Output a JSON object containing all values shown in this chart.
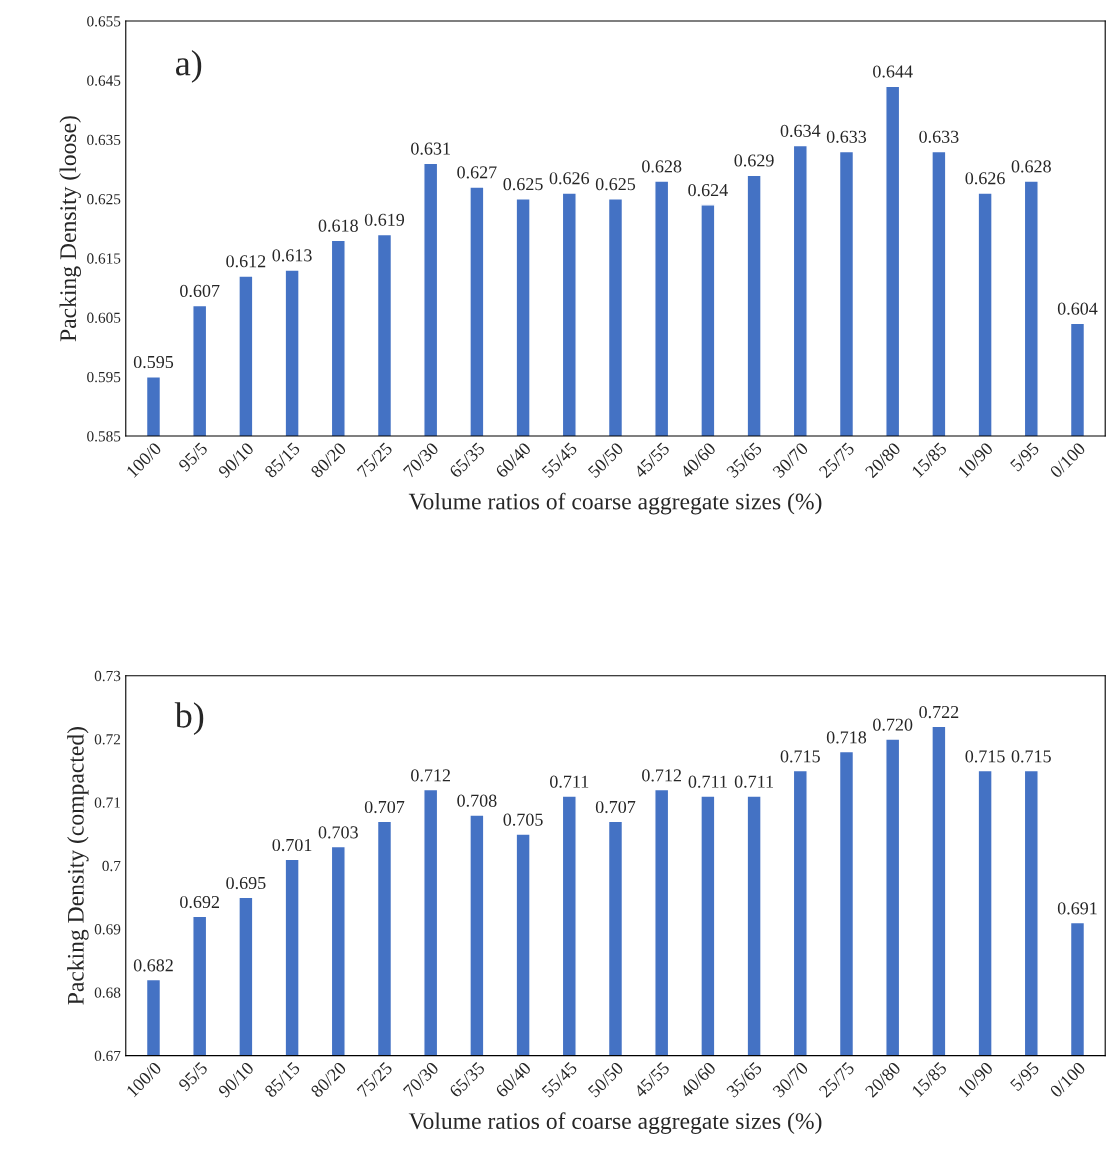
{
  "chart_data": [
    {
      "type": "bar",
      "annotations": [
        "a)"
      ],
      "xlabel": "Volume ratios of coarse aggregate sizes (%)",
      "ylabel": "Packing Density (loose)",
      "categories": [
        "100/0",
        "95/5",
        "90/10",
        "85/15",
        "80/20",
        "75/25",
        "70/30",
        "65/35",
        "60/40",
        "55/45",
        "50/50",
        "45/55",
        "40/60",
        "35/65",
        "30/70",
        "25/75",
        "20/80",
        "15/85",
        "10/90",
        "5/95",
        "0/100"
      ],
      "values": [
        0.595,
        0.607,
        0.612,
        0.613,
        0.618,
        0.619,
        0.631,
        0.627,
        0.625,
        0.626,
        0.625,
        0.628,
        0.624,
        0.629,
        0.634,
        0.633,
        0.644,
        0.633,
        0.626,
        0.628,
        0.604
      ],
      "value_labels": [
        "0.595",
        "0.607",
        "0.612",
        "0.613",
        "0.618",
        "0.619",
        "0.631",
        "0.627",
        "0.625",
        "0.626",
        "0.625",
        "0.628",
        "0.624",
        "0.629",
        "0.634",
        "0.633",
        "0.644",
        "0.633",
        "0.626",
        "0.628",
        "0.604"
      ],
      "color": "#4472c4",
      "ylim": [
        0.585,
        0.655
      ],
      "yticks": [
        0.585,
        0.595,
        0.605,
        0.615,
        0.625,
        0.635,
        0.645,
        0.655
      ],
      "grid": false,
      "legend": false
    },
    {
      "type": "bar",
      "annotations": [
        "b)"
      ],
      "xlabel": "Volume ratios of coarse aggregate sizes (%)",
      "ylabel": "Packing Density (compacted)",
      "categories": [
        "100/0",
        "95/5",
        "90/10",
        "85/15",
        "80/20",
        "75/25",
        "70/30",
        "65/35",
        "60/40",
        "55/45",
        "50/50",
        "45/55",
        "40/60",
        "35/65",
        "30/70",
        "25/75",
        "20/80",
        "15/85",
        "10/90",
        "5/95",
        "0/100"
      ],
      "values": [
        0.682,
        0.692,
        0.695,
        0.701,
        0.703,
        0.707,
        0.712,
        0.708,
        0.705,
        0.711,
        0.707,
        0.712,
        0.711,
        0.711,
        0.715,
        0.718,
        0.72,
        0.722,
        0.715,
        0.715,
        0.691
      ],
      "value_labels": [
        "0.682",
        "0.692",
        "0.695",
        "0.701",
        "0.703",
        "0.707",
        "0.712",
        "0.708",
        "0.705",
        "0.711",
        "0.707",
        "0.712",
        "0.711",
        "0.711",
        "0.715",
        "0.718",
        "0.720",
        "0.722",
        "0.715",
        "0.715",
        "0.691"
      ],
      "color": "#4472c4",
      "ylim": [
        0.67,
        0.73
      ],
      "yticks": [
        0.67,
        0.68,
        0.69,
        {
          "value": 0.7,
          "label": "0.7"
        },
        0.71,
        0.72,
        0.73
      ],
      "grid": false,
      "legend": false
    }
  ]
}
